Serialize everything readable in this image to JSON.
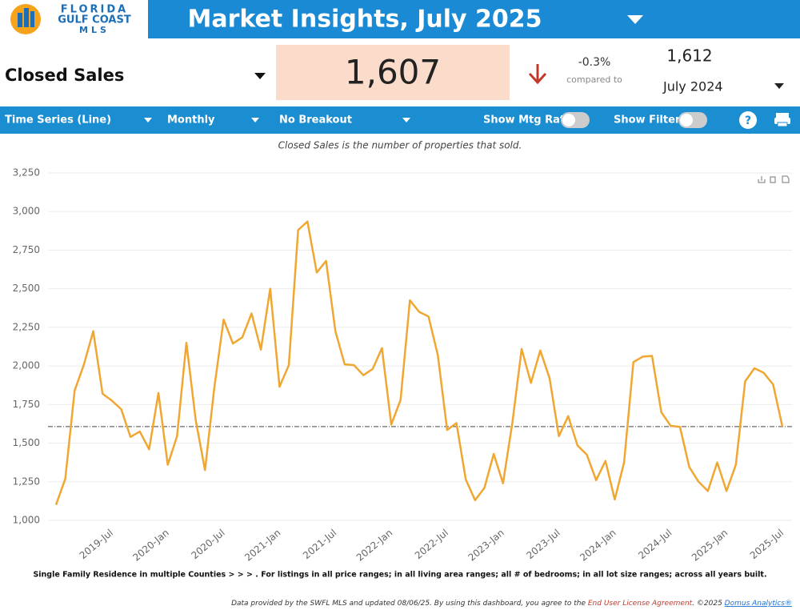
{
  "logo": [
    "FLORIDA",
    "GULF COAST",
    "MLS"
  ],
  "header": {
    "title": "Market Insights, July 2025"
  },
  "kpi": {
    "metric": "Closed Sales",
    "value": "1,607",
    "change": "-0.3%",
    "compared_label": "compared to",
    "compare_value": "1,612",
    "compare_period": "July 2024"
  },
  "toolbar": {
    "chart_type": "Time Series (Line)",
    "interval": "Monthly",
    "breakout": "No Breakout",
    "mtg_rate": "Show Mtg Rate:",
    "filters": "Show Filters:",
    "help": "?"
  },
  "chart_data": {
    "type": "line",
    "subtitle": "Closed Sales is the number of properties that sold.",
    "categories": [
      null,
      null,
      null,
      null,
      null,
      null,
      "2019-Jul",
      null,
      null,
      null,
      null,
      null,
      "2020-Jan",
      null,
      null,
      null,
      null,
      null,
      "2020-Jul",
      null,
      null,
      null,
      null,
      null,
      "2021-Jan",
      null,
      null,
      null,
      null,
      null,
      "2021-Jul",
      null,
      null,
      null,
      null,
      null,
      "2022-Jan",
      null,
      null,
      null,
      null,
      null,
      "2022-Jul",
      null,
      null,
      null,
      null,
      null,
      "2023-Jan",
      null,
      null,
      null,
      null,
      null,
      "2023-Jul",
      null,
      null,
      null,
      null,
      null,
      "2024-Jan",
      null,
      null,
      null,
      null,
      null,
      "2024-Jul",
      null,
      null,
      null,
      null,
      null,
      "2025-Jan",
      null,
      null,
      null,
      null,
      null,
      "2025-Jul"
    ],
    "series": [
      {
        "name": "Closed Sales",
        "color": "#f0a732",
        "values": [
          1100,
          1270,
          1840,
          2010,
          2225,
          1820,
          1775,
          1720,
          1540,
          1575,
          1460,
          1825,
          1360,
          1545,
          2150,
          1650,
          1325,
          1860,
          2300,
          2145,
          2185,
          2340,
          2105,
          2500,
          1865,
          2005,
          2880,
          2935,
          2605,
          2680,
          2225,
          2010,
          2005,
          1940,
          1980,
          2115,
          1620,
          1780,
          2425,
          2350,
          2320,
          2070,
          1585,
          1630,
          1265,
          1130,
          1210,
          1430,
          1240,
          1630,
          2110,
          1890,
          2100,
          1920,
          1545,
          1675,
          1485,
          1425,
          1260,
          1385,
          1135,
          1375,
          2025,
          2060,
          2065,
          1700,
          1612,
          1605,
          1345,
          1250,
          1190,
          1375,
          1190,
          1360,
          1900,
          1985,
          1955,
          1880,
          1607
        ]
      }
    ],
    "reference_value": 1607,
    "ylim": [
      1000,
      3250
    ],
    "yticks": [
      {
        "value": 1000,
        "label": "1,000"
      },
      {
        "value": 1250,
        "label": "1,250"
      },
      {
        "value": 1500,
        "label": "1,500"
      },
      {
        "value": 1750,
        "label": "1,750"
      },
      {
        "value": 2000,
        "label": "2,000"
      },
      {
        "value": 2250,
        "label": "2,250"
      },
      {
        "value": 2500,
        "label": "2,500"
      },
      {
        "value": 2750,
        "label": "2,750"
      },
      {
        "value": 3000,
        "label": "3,000"
      },
      {
        "value": 3250,
        "label": "3,250"
      }
    ],
    "grid": true,
    "note": "Single Family Residence in multiple Counties > > > . For listings in all price ranges; in all living area ranges; all # of bedrooms; in all lot size ranges; across all years built."
  },
  "footer": {
    "text": "Data provided by the SWFL MLS and updated 08/06/25.  By using this dashboard, you agree to the ",
    "license": "End User License Agreement",
    "copyright": ".  ©2025 ",
    "company": "Domus Analytics®"
  }
}
